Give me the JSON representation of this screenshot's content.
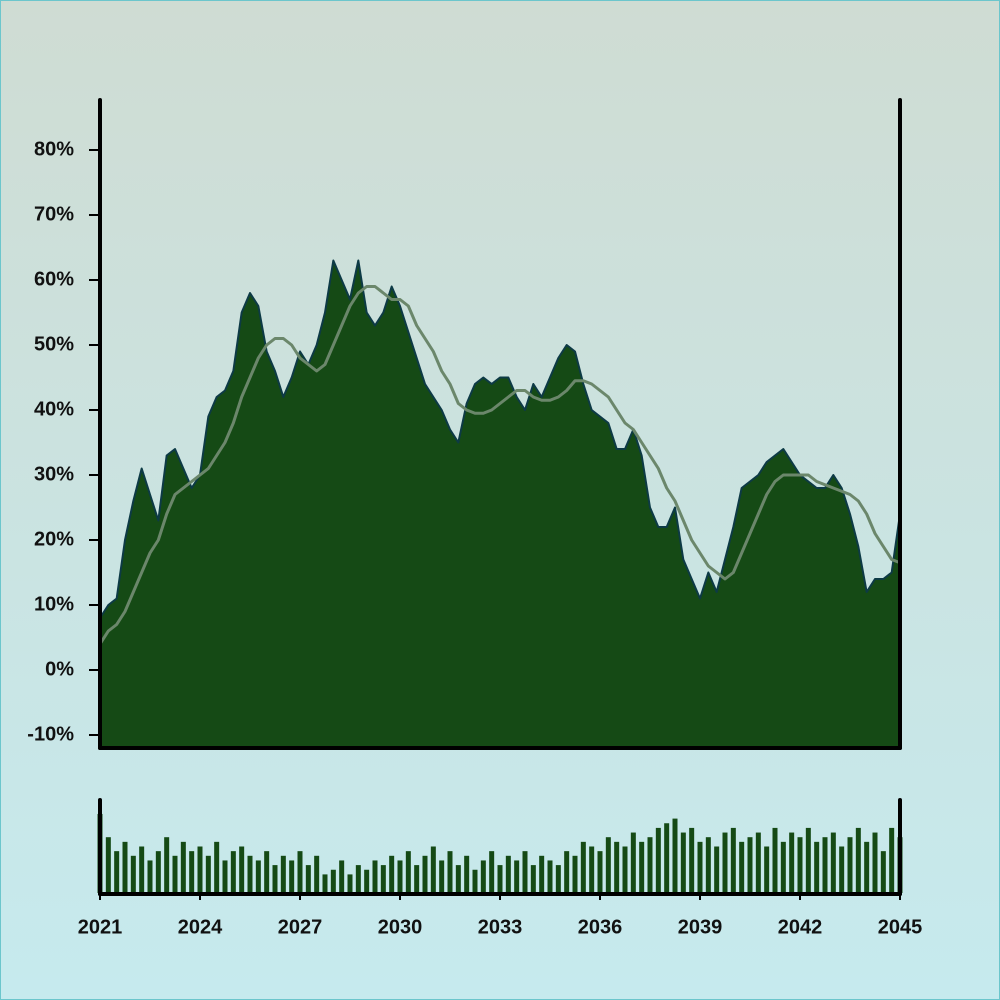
{
  "chart_data": [
    {
      "type": "area",
      "x": [
        2021,
        2021.25,
        2021.5,
        2021.75,
        2022,
        2022.25,
        2022.5,
        2022.75,
        2023,
        2023.25,
        2023.5,
        2023.75,
        2024,
        2024.25,
        2024.5,
        2024.75,
        2025,
        2025.25,
        2025.5,
        2025.75,
        2026,
        2026.25,
        2026.5,
        2026.75,
        2027,
        2027.25,
        2027.5,
        2027.75,
        2028,
        2028.25,
        2028.5,
        2028.75,
        2029,
        2029.25,
        2029.5,
        2029.75,
        2030,
        2030.25,
        2030.5,
        2030.75,
        2031,
        2031.25,
        2031.5,
        2031.75,
        2032,
        2032.25,
        2032.5,
        2032.75,
        2033,
        2033.25,
        2033.5,
        2033.75,
        2034,
        2034.25,
        2034.5,
        2034.75,
        2035,
        2035.25,
        2035.5,
        2035.75,
        2036,
        2036.25,
        2036.5,
        2036.75,
        2037,
        2037.25,
        2037.5,
        2037.75,
        2038,
        2038.25,
        2038.5,
        2038.75,
        2039,
        2039.25,
        2039.5,
        2039.75,
        2040,
        2040.25,
        2040.5,
        2040.75,
        2041,
        2041.25,
        2041.5,
        2041.75,
        2042,
        2042.25,
        2042.5,
        2042.75,
        2043,
        2043.25,
        2043.5,
        2043.75,
        2044,
        2044.25,
        2044.5,
        2044.75,
        2045
      ],
      "series": [
        {
          "type": "area",
          "color": "#154a15",
          "edge_color": "#0d3a45",
          "values": [
            8,
            10,
            11,
            20,
            26,
            31,
            27,
            23,
            33,
            34,
            31,
            28,
            30,
            39,
            42,
            43,
            46,
            55,
            58,
            56,
            49,
            46,
            42,
            45,
            49,
            47,
            50,
            55,
            63,
            60,
            57,
            63,
            55,
            53,
            55,
            59,
            56,
            52,
            48,
            44,
            42,
            40,
            37,
            35,
            41,
            44,
            45,
            44,
            45,
            45,
            42,
            40,
            44,
            42,
            45,
            48,
            50,
            49,
            44,
            40,
            39,
            38,
            34,
            34,
            37,
            33,
            25,
            22,
            22,
            25,
            17,
            14,
            11,
            15,
            12,
            17,
            22,
            28,
            29,
            30,
            32,
            33,
            34,
            32,
            30,
            29,
            28,
            28,
            30,
            28,
            24,
            19,
            12,
            14,
            14,
            15,
            24
          ]
        },
        {
          "type": "line",
          "color": "#6b876b",
          "values": [
            4,
            6,
            7,
            9,
            12,
            15,
            18,
            20,
            24,
            27,
            28,
            29,
            30,
            31,
            33,
            35,
            38,
            42,
            45,
            48,
            50,
            51,
            51,
            50,
            48,
            47,
            46,
            47,
            50,
            53,
            56,
            58,
            59,
            59,
            58,
            57,
            57,
            56,
            53,
            51,
            49,
            46,
            44,
            41,
            40,
            39.5,
            39.5,
            40,
            41,
            42,
            43,
            43,
            42,
            41.5,
            41.5,
            42,
            43,
            44.5,
            44.5,
            44,
            43,
            42,
            40,
            38,
            37,
            35,
            33,
            31,
            28,
            26,
            23,
            20,
            18,
            16,
            15,
            14,
            15,
            18,
            21,
            24,
            27,
            29,
            30,
            30,
            30,
            30,
            29,
            28.5,
            28,
            27.5,
            27,
            26,
            24,
            21,
            19,
            17,
            16.5
          ]
        }
      ],
      "xlim": [
        2021,
        2045
      ],
      "ylim": [
        -12,
        88
      ],
      "yticks": [
        {
          "value": -10,
          "label": "-10%"
        },
        {
          "value": 0,
          "label": "0%"
        },
        {
          "value": 10,
          "label": "10%"
        },
        {
          "value": 20,
          "label": "20%"
        },
        {
          "value": 30,
          "label": "30%"
        },
        {
          "value": 40,
          "label": "40%"
        },
        {
          "value": 50,
          "label": "50%"
        },
        {
          "value": 60,
          "label": "60%"
        },
        {
          "value": 70,
          "label": "70%"
        },
        {
          "value": 80,
          "label": "80%"
        }
      ]
    },
    {
      "type": "bar",
      "x": [
        2021,
        2021.25,
        2021.5,
        2021.75,
        2022,
        2022.25,
        2022.5,
        2022.75,
        2023,
        2023.25,
        2023.5,
        2023.75,
        2024,
        2024.25,
        2024.5,
        2024.75,
        2025,
        2025.25,
        2025.5,
        2025.75,
        2026,
        2026.25,
        2026.5,
        2026.75,
        2027,
        2027.25,
        2027.5,
        2027.75,
        2028,
        2028.25,
        2028.5,
        2028.75,
        2029,
        2029.25,
        2029.5,
        2029.75,
        2030,
        2030.25,
        2030.5,
        2030.75,
        2031,
        2031.25,
        2031.5,
        2031.75,
        2032,
        2032.25,
        2032.5,
        2032.75,
        2033,
        2033.25,
        2033.5,
        2033.75,
        2034,
        2034.25,
        2034.5,
        2034.75,
        2035,
        2035.25,
        2035.5,
        2035.75,
        2036,
        2036.25,
        2036.5,
        2036.75,
        2037,
        2037.25,
        2037.5,
        2037.75,
        2038,
        2038.25,
        2038.5,
        2038.75,
        2039,
        2039.25,
        2039.5,
        2039.75,
        2040,
        2040.25,
        2040.5,
        2040.75,
        2041,
        2041.25,
        2041.5,
        2041.75,
        2042,
        2042.25,
        2042.5,
        2042.75,
        2043,
        2043.25,
        2043.5,
        2043.75,
        2044,
        2044.25,
        2044.5,
        2044.75,
        2045
      ],
      "values": [
        85,
        60,
        45,
        55,
        40,
        50,
        35,
        45,
        60,
        40,
        55,
        45,
        50,
        40,
        55,
        35,
        45,
        50,
        40,
        35,
        45,
        30,
        40,
        35,
        45,
        30,
        40,
        20,
        25,
        35,
        20,
        30,
        25,
        35,
        30,
        40,
        35,
        45,
        30,
        40,
        50,
        35,
        45,
        30,
        40,
        25,
        35,
        45,
        30,
        40,
        35,
        45,
        30,
        40,
        35,
        30,
        45,
        40,
        55,
        50,
        45,
        60,
        55,
        50,
        65,
        55,
        60,
        70,
        75,
        80,
        65,
        70,
        55,
        60,
        50,
        65,
        70,
        55,
        60,
        65,
        50,
        70,
        55,
        65,
        60,
        70,
        55,
        60,
        65,
        50,
        60,
        70,
        55,
        65,
        45,
        70,
        60
      ],
      "color": "#154a15",
      "xlim": [
        2021,
        2045
      ],
      "ylim": [
        0,
        100
      ],
      "xticks": [
        2021,
        2024,
        2027,
        2030,
        2033,
        2036,
        2039,
        2042,
        2045
      ]
    }
  ]
}
